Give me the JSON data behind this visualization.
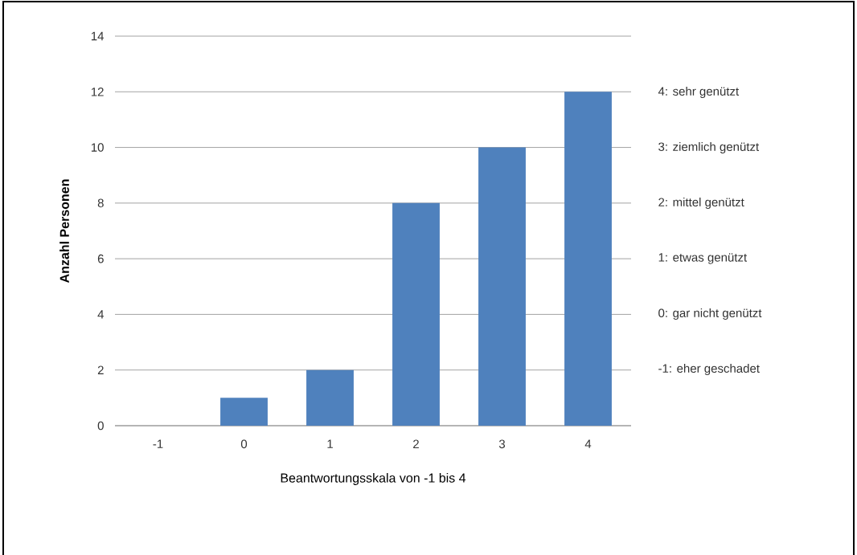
{
  "chart_data": {
    "type": "bar",
    "xlabel": "Beantwortungsskala von -1 bis 4",
    "ylabel": "Anzahl Personen",
    "categories": [
      "-1",
      "0",
      "1",
      "2",
      "3",
      "4"
    ],
    "values": [
      0,
      1,
      2,
      8,
      10,
      12
    ],
    "color": "#4f81bd",
    "ylim": [
      0,
      14
    ],
    "yticks": [
      0,
      2,
      4,
      6,
      8,
      10,
      12,
      14
    ],
    "grid": "y",
    "annotations": [
      "4: sehr genützt",
      "3: ziemlich genützt",
      "2: mittel genützt",
      "1: etwas genützt",
      "0: gar nicht genützt",
      "-1: eher geschadet"
    ]
  }
}
